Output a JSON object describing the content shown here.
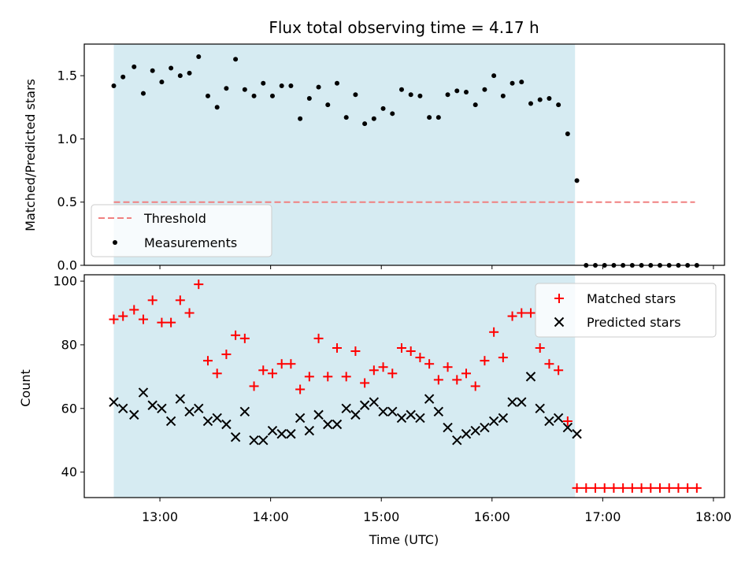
{
  "chart_data": [
    {
      "type": "scatter",
      "title": "Flux total observing time = 4.17 h",
      "xlabel": "",
      "ylabel": "Matched/Predicted stars",
      "xlim": [
        "12:19",
        "18:06"
      ],
      "ylim": [
        0,
        1.75
      ],
      "yticks": [
        0.0,
        0.5,
        1.0,
        1.5
      ],
      "ytick_labels": [
        "0.0",
        "0.5",
        "1.0",
        "1.5"
      ],
      "shaded_span": [
        "12:35",
        "16:45"
      ],
      "shade_color": "#add8e6",
      "threshold": {
        "name": "Threshold",
        "value": 0.5,
        "x_range": [
          "12:35",
          "17:50"
        ],
        "color": "#f08080",
        "style": "dashed"
      },
      "series": [
        {
          "name": "Measurements",
          "color": "#000000",
          "marker": "dot",
          "x": [
            "12:35",
            "12:40",
            "12:46",
            "12:51",
            "12:56",
            "13:01",
            "13:06",
            "13:11",
            "13:16",
            "13:21",
            "13:26",
            "13:31",
            "13:36",
            "13:41",
            "13:46",
            "13:51",
            "13:56",
            "14:01",
            "14:06",
            "14:11",
            "14:16",
            "14:21",
            "14:26",
            "14:31",
            "14:36",
            "14:41",
            "14:46",
            "14:51",
            "14:56",
            "15:01",
            "15:06",
            "15:11",
            "15:16",
            "15:21",
            "15:26",
            "15:31",
            "15:36",
            "15:41",
            "15:46",
            "15:51",
            "15:56",
            "16:01",
            "16:06",
            "16:11",
            "16:16",
            "16:21",
            "16:26",
            "16:31",
            "16:36",
            "16:41",
            "16:46",
            "16:51",
            "16:56",
            "17:01",
            "17:06",
            "17:11",
            "17:16",
            "17:21",
            "17:26",
            "17:31",
            "17:36",
            "17:41",
            "17:46",
            "17:51"
          ],
          "y": [
            1.42,
            1.49,
            1.57,
            1.36,
            1.54,
            1.45,
            1.56,
            1.5,
            1.52,
            1.65,
            1.34,
            1.25,
            1.4,
            1.63,
            1.39,
            1.34,
            1.44,
            1.34,
            1.42,
            1.42,
            1.16,
            1.32,
            1.41,
            1.27,
            1.44,
            1.17,
            1.35,
            1.12,
            1.16,
            1.24,
            1.2,
            1.39,
            1.35,
            1.34,
            1.17,
            1.17,
            1.35,
            1.38,
            1.37,
            1.27,
            1.39,
            1.5,
            1.34,
            1.44,
            1.45,
            1.28,
            1.31,
            1.32,
            1.27,
            1.04,
            0.67,
            0,
            0,
            0,
            0,
            0,
            0,
            0,
            0,
            0,
            0,
            0,
            0,
            0
          ]
        }
      ],
      "legend": {
        "position": "lower-left",
        "entries": [
          "Threshold",
          "Measurements"
        ]
      }
    },
    {
      "type": "scatter",
      "title": "",
      "xlabel": "Time (UTC)",
      "ylabel": "Count",
      "xlim": [
        "12:19",
        "18:06"
      ],
      "ylim": [
        32,
        102
      ],
      "xticks": [
        "13:00",
        "14:00",
        "15:00",
        "16:00",
        "17:00",
        "18:00"
      ],
      "yticks": [
        40,
        60,
        80,
        100
      ],
      "ytick_labels": [
        "40",
        "60",
        "80",
        "100"
      ],
      "shaded_span": [
        "12:35",
        "16:45"
      ],
      "shade_color": "#add8e6",
      "series": [
        {
          "name": "Matched stars",
          "color": "#ff0000",
          "marker": "plus",
          "x": [
            "12:35",
            "12:40",
            "12:46",
            "12:51",
            "12:56",
            "13:01",
            "13:06",
            "13:11",
            "13:16",
            "13:21",
            "13:26",
            "13:31",
            "13:36",
            "13:41",
            "13:46",
            "13:51",
            "13:56",
            "14:01",
            "14:06",
            "14:11",
            "14:16",
            "14:21",
            "14:26",
            "14:31",
            "14:36",
            "14:41",
            "14:46",
            "14:51",
            "14:56",
            "15:01",
            "15:06",
            "15:11",
            "15:16",
            "15:21",
            "15:26",
            "15:31",
            "15:36",
            "15:41",
            "15:46",
            "15:51",
            "15:56",
            "16:01",
            "16:06",
            "16:11",
            "16:16",
            "16:21",
            "16:26",
            "16:31",
            "16:36",
            "16:41",
            "16:46",
            "16:51",
            "16:56",
            "17:01",
            "17:06",
            "17:11",
            "17:16",
            "17:21",
            "17:26",
            "17:31",
            "17:36",
            "17:41",
            "17:46",
            "17:51"
          ],
          "y": [
            88,
            89,
            91,
            88,
            94,
            87,
            87,
            94,
            90,
            99,
            75,
            71,
            77,
            83,
            82,
            67,
            72,
            71,
            74,
            74,
            66,
            70,
            82,
            70,
            79,
            70,
            78,
            68,
            72,
            73,
            71,
            79,
            78,
            76,
            74,
            69,
            73,
            69,
            71,
            67,
            75,
            84,
            76,
            89,
            90,
            90,
            79,
            74,
            72,
            56,
            35,
            35,
            35,
            35,
            35,
            35,
            35,
            35,
            35,
            35,
            35,
            35,
            35,
            35
          ]
        },
        {
          "name": "Predicted stars",
          "color": "#000000",
          "marker": "x",
          "x": [
            "12:35",
            "12:40",
            "12:46",
            "12:51",
            "12:56",
            "13:01",
            "13:06",
            "13:11",
            "13:16",
            "13:21",
            "13:26",
            "13:31",
            "13:36",
            "13:41",
            "13:46",
            "13:51",
            "13:56",
            "14:01",
            "14:06",
            "14:11",
            "14:16",
            "14:21",
            "14:26",
            "14:31",
            "14:36",
            "14:41",
            "14:46",
            "14:51",
            "14:56",
            "15:01",
            "15:06",
            "15:11",
            "15:16",
            "15:21",
            "15:26",
            "15:31",
            "15:36",
            "15:41",
            "15:46",
            "15:51",
            "15:56",
            "16:01",
            "16:06",
            "16:11",
            "16:16",
            "16:21",
            "16:26",
            "16:31",
            "16:36",
            "16:41",
            "16:46"
          ],
          "y": [
            62,
            60,
            58,
            65,
            61,
            60,
            56,
            63,
            59,
            60,
            56,
            57,
            55,
            51,
            59,
            50,
            50,
            53,
            52,
            52,
            57,
            53,
            58,
            55,
            55,
            60,
            58,
            61,
            62,
            59,
            59,
            57,
            58,
            57,
            63,
            59,
            54,
            50,
            52,
            53,
            54,
            56,
            57,
            62,
            62,
            70,
            60,
            56,
            57,
            54,
            52
          ]
        }
      ],
      "legend": {
        "position": "top-right",
        "entries": [
          "Matched stars",
          "Predicted stars"
        ]
      }
    }
  ]
}
